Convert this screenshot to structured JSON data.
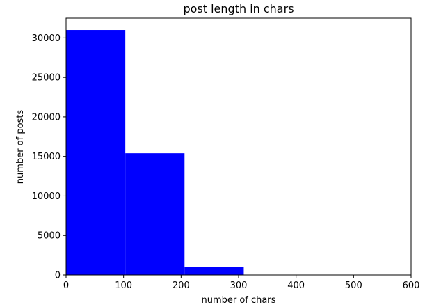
{
  "chart_data": {
    "type": "bar",
    "title": "post length in chars",
    "xlabel": "number of chars",
    "ylabel": "number of posts",
    "xlim": [
      0,
      600
    ],
    "ylim": [
      0,
      32500
    ],
    "xticks": [
      0,
      100,
      200,
      300,
      400,
      500,
      600
    ],
    "yticks": [
      0,
      5000,
      10000,
      15000,
      20000,
      25000,
      30000
    ],
    "bins": [
      {
        "start": 0,
        "end": 103,
        "value": 31000
      },
      {
        "start": 103,
        "end": 206,
        "value": 15400
      },
      {
        "start": 206,
        "end": 309,
        "value": 1000
      }
    ],
    "bar_color": "#0000ff",
    "grid": false,
    "legend": "none"
  }
}
